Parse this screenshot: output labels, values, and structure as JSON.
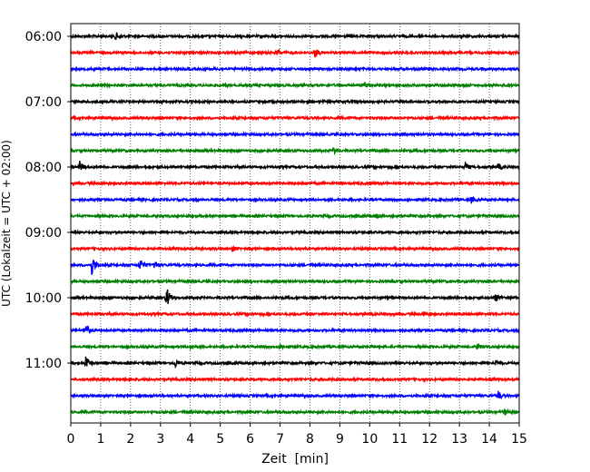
{
  "chart_data": {
    "type": "line",
    "subtype": "helicorder",
    "xlabel": "Zeit  [min]",
    "ylabel": "UTC (Lokalzeit = UTC + 02:00)",
    "xlim": [
      0,
      15
    ],
    "x_ticks": [
      0,
      1,
      2,
      3,
      4,
      5,
      6,
      7,
      8,
      9,
      10,
      11,
      12,
      13,
      14,
      15
    ],
    "y_tick_labels": [
      "06:00",
      "07:00",
      "08:00",
      "09:00",
      "10:00",
      "11:00"
    ],
    "grid": "vertical dotted at each minute",
    "trace_colors": [
      "#000000",
      "#ff0000",
      "#0000ff",
      "#008000"
    ],
    "traces": [
      {
        "start": "06:00",
        "color": "#000000",
        "events": [
          {
            "t": 1.5,
            "amp": 1.0
          }
        ]
      },
      {
        "start": "06:15",
        "color": "#ff0000",
        "events": [
          {
            "t": 6.9,
            "amp": 0.9
          },
          {
            "t": 8.15,
            "amp": 1.3
          }
        ]
      },
      {
        "start": "06:30",
        "color": "#0000ff",
        "events": []
      },
      {
        "start": "06:45",
        "color": "#008000",
        "events": [
          {
            "t": 9.8,
            "amp": 1.1
          }
        ]
      },
      {
        "start": "07:00",
        "color": "#000000",
        "events": []
      },
      {
        "start": "07:15",
        "color": "#ff0000",
        "events": []
      },
      {
        "start": "07:30",
        "color": "#0000ff",
        "events": []
      },
      {
        "start": "07:45",
        "color": "#008000",
        "events": [
          {
            "t": 8.8,
            "amp": 0.9
          }
        ]
      },
      {
        "start": "08:00",
        "color": "#000000",
        "events": [
          {
            "t": 0.3,
            "amp": 1.2
          },
          {
            "t": 13.2,
            "amp": 0.9
          },
          {
            "t": 14.3,
            "amp": 0.8
          }
        ]
      },
      {
        "start": "08:15",
        "color": "#ff0000",
        "events": []
      },
      {
        "start": "08:30",
        "color": "#0000ff",
        "events": [
          {
            "t": 13.4,
            "amp": 0.7
          }
        ]
      },
      {
        "start": "08:45",
        "color": "#008000",
        "events": [
          {
            "t": 10.2,
            "amp": 0.6
          }
        ]
      },
      {
        "start": "09:00",
        "color": "#000000",
        "events": []
      },
      {
        "start": "09:15",
        "color": "#ff0000",
        "events": [
          {
            "t": 5.4,
            "amp": 0.6
          }
        ]
      },
      {
        "start": "09:30",
        "color": "#0000ff",
        "events": [
          {
            "t": 0.7,
            "amp": 2.6
          },
          {
            "t": 2.3,
            "amp": 1.8
          },
          {
            "t": 2.8,
            "amp": 1.2
          }
        ]
      },
      {
        "start": "09:45",
        "color": "#008000",
        "events": []
      },
      {
        "start": "10:00",
        "color": "#000000",
        "events": [
          {
            "t": 3.2,
            "amp": 2.8
          },
          {
            "t": 14.2,
            "amp": 1.0
          }
        ]
      },
      {
        "start": "10:15",
        "color": "#ff0000",
        "events": [
          {
            "t": 11.8,
            "amp": 0.6
          }
        ]
      },
      {
        "start": "10:30",
        "color": "#0000ff",
        "events": [
          {
            "t": 0.5,
            "amp": 1.7
          }
        ]
      },
      {
        "start": "10:45",
        "color": "#008000",
        "events": [
          {
            "t": 4.0,
            "amp": 0.6
          },
          {
            "t": 7.0,
            "amp": 0.7
          },
          {
            "t": 13.6,
            "amp": 0.8
          }
        ]
      },
      {
        "start": "11:00",
        "color": "#000000",
        "events": [
          {
            "t": 0.5,
            "amp": 1.9
          },
          {
            "t": 3.5,
            "amp": 0.9
          },
          {
            "t": 14.2,
            "amp": 0.7
          }
        ]
      },
      {
        "start": "11:15",
        "color": "#ff0000",
        "events": []
      },
      {
        "start": "11:30",
        "color": "#0000ff",
        "events": [
          {
            "t": 14.3,
            "amp": 1.0
          }
        ]
      },
      {
        "start": "11:45",
        "color": "#008000",
        "events": [
          {
            "t": 14.5,
            "amp": 0.8
          }
        ]
      }
    ]
  }
}
